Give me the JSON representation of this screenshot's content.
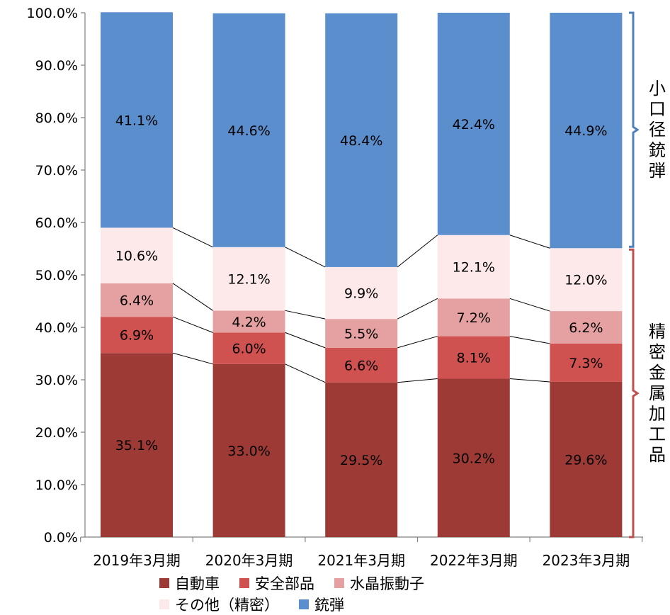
{
  "chart_data": {
    "type": "bar",
    "stacked": true,
    "percent": true,
    "categories": [
      "2019年3月期",
      "2020年3月期",
      "2021年3月期",
      "2022年3月期",
      "2023年3月期"
    ],
    "series": [
      {
        "name": "自動車",
        "color": "#9e3a35",
        "values": [
          35.1,
          33.0,
          29.5,
          30.2,
          29.6
        ],
        "labels": [
          "35.1%",
          "33.0%",
          "29.5%",
          "30.2%",
          "29.6%"
        ]
      },
      {
        "name": "安全部品",
        "color": "#cf5250",
        "values": [
          6.9,
          6.0,
          6.6,
          8.1,
          7.3
        ],
        "labels": [
          "6.9%",
          "6.0%",
          "6.6%",
          "8.1%",
          "7.3%"
        ]
      },
      {
        "name": "水晶振動子",
        "color": "#e5a1a1",
        "values": [
          6.4,
          4.2,
          5.5,
          7.2,
          6.2
        ],
        "labels": [
          "6.4%",
          "4.2%",
          "5.5%",
          "7.2%",
          "6.2%"
        ]
      },
      {
        "name": "その他（精密）",
        "color": "#fde9e9",
        "values": [
          10.6,
          12.1,
          9.9,
          12.1,
          12.0
        ],
        "labels": [
          "10.6%",
          "12.1%",
          "9.9%",
          "12.1%",
          "12.0%"
        ]
      },
      {
        "name": "銃弾",
        "color": "#5b8ecd",
        "values": [
          41.1,
          44.6,
          48.4,
          42.4,
          44.9
        ],
        "labels": [
          "41.1%",
          "44.6%",
          "48.4%",
          "42.4%",
          "44.9%"
        ]
      }
    ],
    "ylim": [
      0,
      100
    ],
    "yticks": [
      "0.0%",
      "10.0%",
      "20.0%",
      "30.0%",
      "40.0%",
      "50.0%",
      "60.0%",
      "70.0%",
      "80.0%",
      "90.0%",
      "100.0%"
    ],
    "connector_lines": true,
    "legend_position": "bottom",
    "annotations": [
      {
        "text": "小口径銃弾",
        "color": "#4f81bd",
        "covers_series": [
          "銃弾"
        ]
      },
      {
        "text": "精密金属加工品",
        "color": "#c0504d",
        "covers_series": [
          "自動車",
          "安全部品",
          "水晶振動子",
          "その他（精密）"
        ]
      }
    ]
  }
}
